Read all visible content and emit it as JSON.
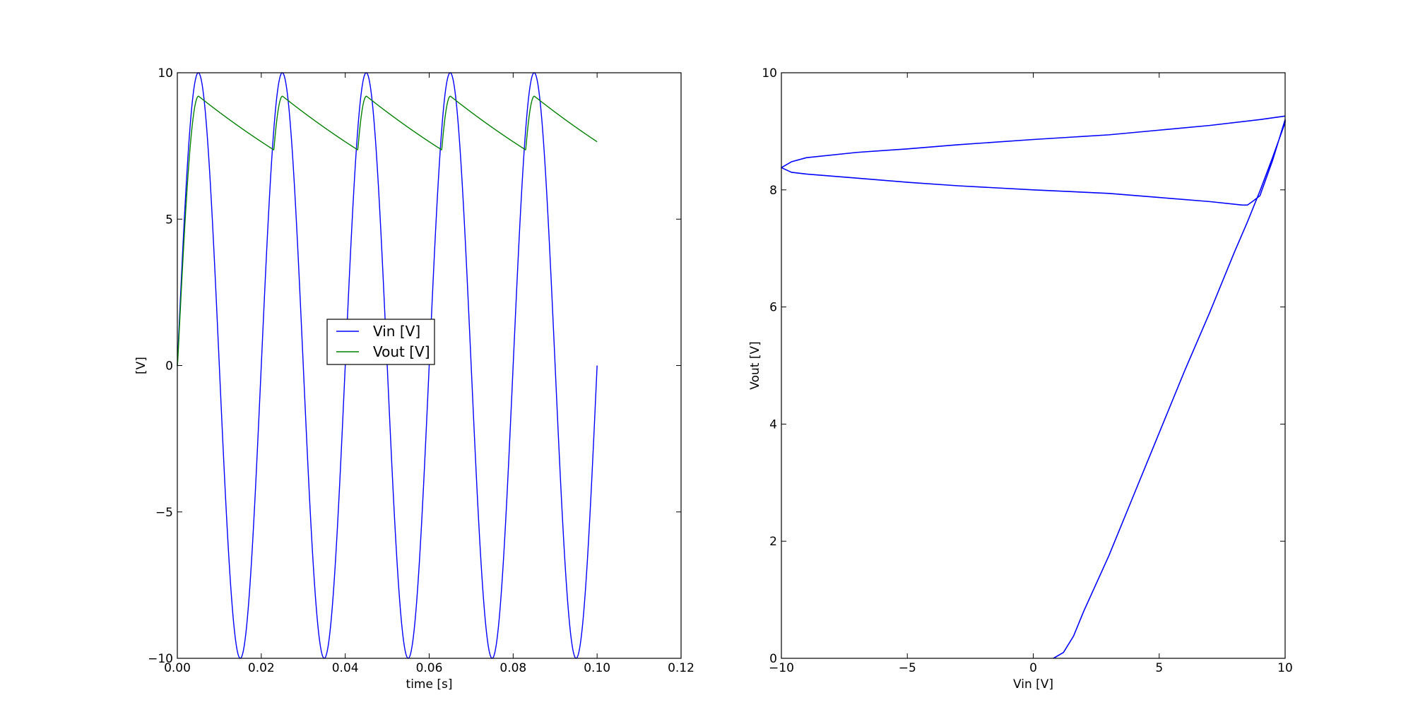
{
  "colors": {
    "vin": "#0000ff",
    "vout": "#008000",
    "axes": "#000000",
    "background": "#ffffff"
  },
  "chart_data": [
    {
      "type": "line",
      "title": "",
      "xlabel": "time [s]",
      "ylabel": "[V]",
      "xlim": [
        0,
        0.12
      ],
      "ylim": [
        -10,
        10
      ],
      "xticks": [
        0,
        0.02,
        0.04,
        0.06,
        0.08,
        0.1,
        0.12
      ],
      "xtick_labels": [
        "0.00",
        "0.02",
        "0.04",
        "0.06",
        "0.08",
        "0.10",
        "0.12"
      ],
      "yticks": [
        -10,
        -5,
        0,
        5,
        10
      ],
      "ytick_labels": [
        "−10",
        "−5",
        "0",
        "5",
        "10"
      ],
      "grid": false,
      "legend": {
        "placement": "center-left",
        "entries": [
          "Vin [V]",
          "Vout [V]"
        ]
      },
      "series": [
        {
          "name": "Vin [V]",
          "color": "#0000ff",
          "description_points": {
            "x": [
              0,
              0.005,
              0.01,
              0.015,
              0.02,
              0.025,
              0.03,
              0.035,
              0.04,
              0.045,
              0.05,
              0.055,
              0.06,
              0.065,
              0.07,
              0.075,
              0.08,
              0.085,
              0.09,
              0.095,
              0.1
            ],
            "y": [
              0,
              10,
              0,
              -10,
              0,
              10,
              0,
              -10,
              0,
              10,
              0,
              -10,
              0,
              10,
              0,
              -10,
              0,
              10,
              0,
              -10,
              0
            ]
          }
        },
        {
          "name": "Vout [V]",
          "color": "#008000",
          "description_points": {
            "x": [
              0,
              0.0055,
              0.023,
              0.0255,
              0.043,
              0.0455,
              0.063,
              0.0655,
              0.083,
              0.0855,
              0.1
            ],
            "y": [
              0,
              9.2,
              7.7,
              9.2,
              7.7,
              9.2,
              7.7,
              9.2,
              7.7,
              9.2,
              7.95
            ]
          }
        }
      ]
    },
    {
      "type": "line",
      "title": "",
      "xlabel": "Vin [V]",
      "ylabel": "Vout [V]",
      "xlim": [
        -10,
        10
      ],
      "ylim": [
        0,
        10
      ],
      "xticks": [
        -10,
        -5,
        0,
        5,
        10
      ],
      "xtick_labels": [
        "−10",
        "−5",
        "0",
        "5",
        "10"
      ],
      "yticks": [
        0,
        2,
        4,
        6,
        8,
        10
      ],
      "ytick_labels": [
        "0",
        "2",
        "4",
        "6",
        "8",
        "10"
      ],
      "grid": false,
      "series": [
        {
          "color": "#0000ff",
          "points": {
            "x": [
              0.8,
              1.2,
              1.6,
              2.0,
              3.0,
              4.0,
              5.0,
              6.0,
              7.0,
              8.0,
              8.5,
              9.0,
              9.5,
              10.0,
              10.0,
              9.5,
              9.0,
              8.7,
              8.5,
              8.3,
              7.0,
              5.0,
              3.0,
              0.0,
              -3.0,
              -5.0,
              -7.0,
              -9.0,
              -9.6,
              -10.0,
              -9.6,
              -9.0,
              -7.0,
              -5.0,
              -3.0,
              0.0,
              3.0,
              5.0,
              7.0,
              9.0,
              10.0
            ],
            "y": [
              0.0,
              0.1,
              0.38,
              0.8,
              1.75,
              2.8,
              3.85,
              4.9,
              5.9,
              6.95,
              7.45,
              7.98,
              8.55,
              9.15,
              9.2,
              8.5,
              7.9,
              7.8,
              7.74,
              7.74,
              7.8,
              7.87,
              7.94,
              8.0,
              8.07,
              8.13,
              8.2,
              8.27,
              8.3,
              8.38,
              8.48,
              8.55,
              8.64,
              8.7,
              8.77,
              8.86,
              8.94,
              9.02,
              9.1,
              9.2,
              9.26
            ]
          }
        }
      ]
    }
  ]
}
